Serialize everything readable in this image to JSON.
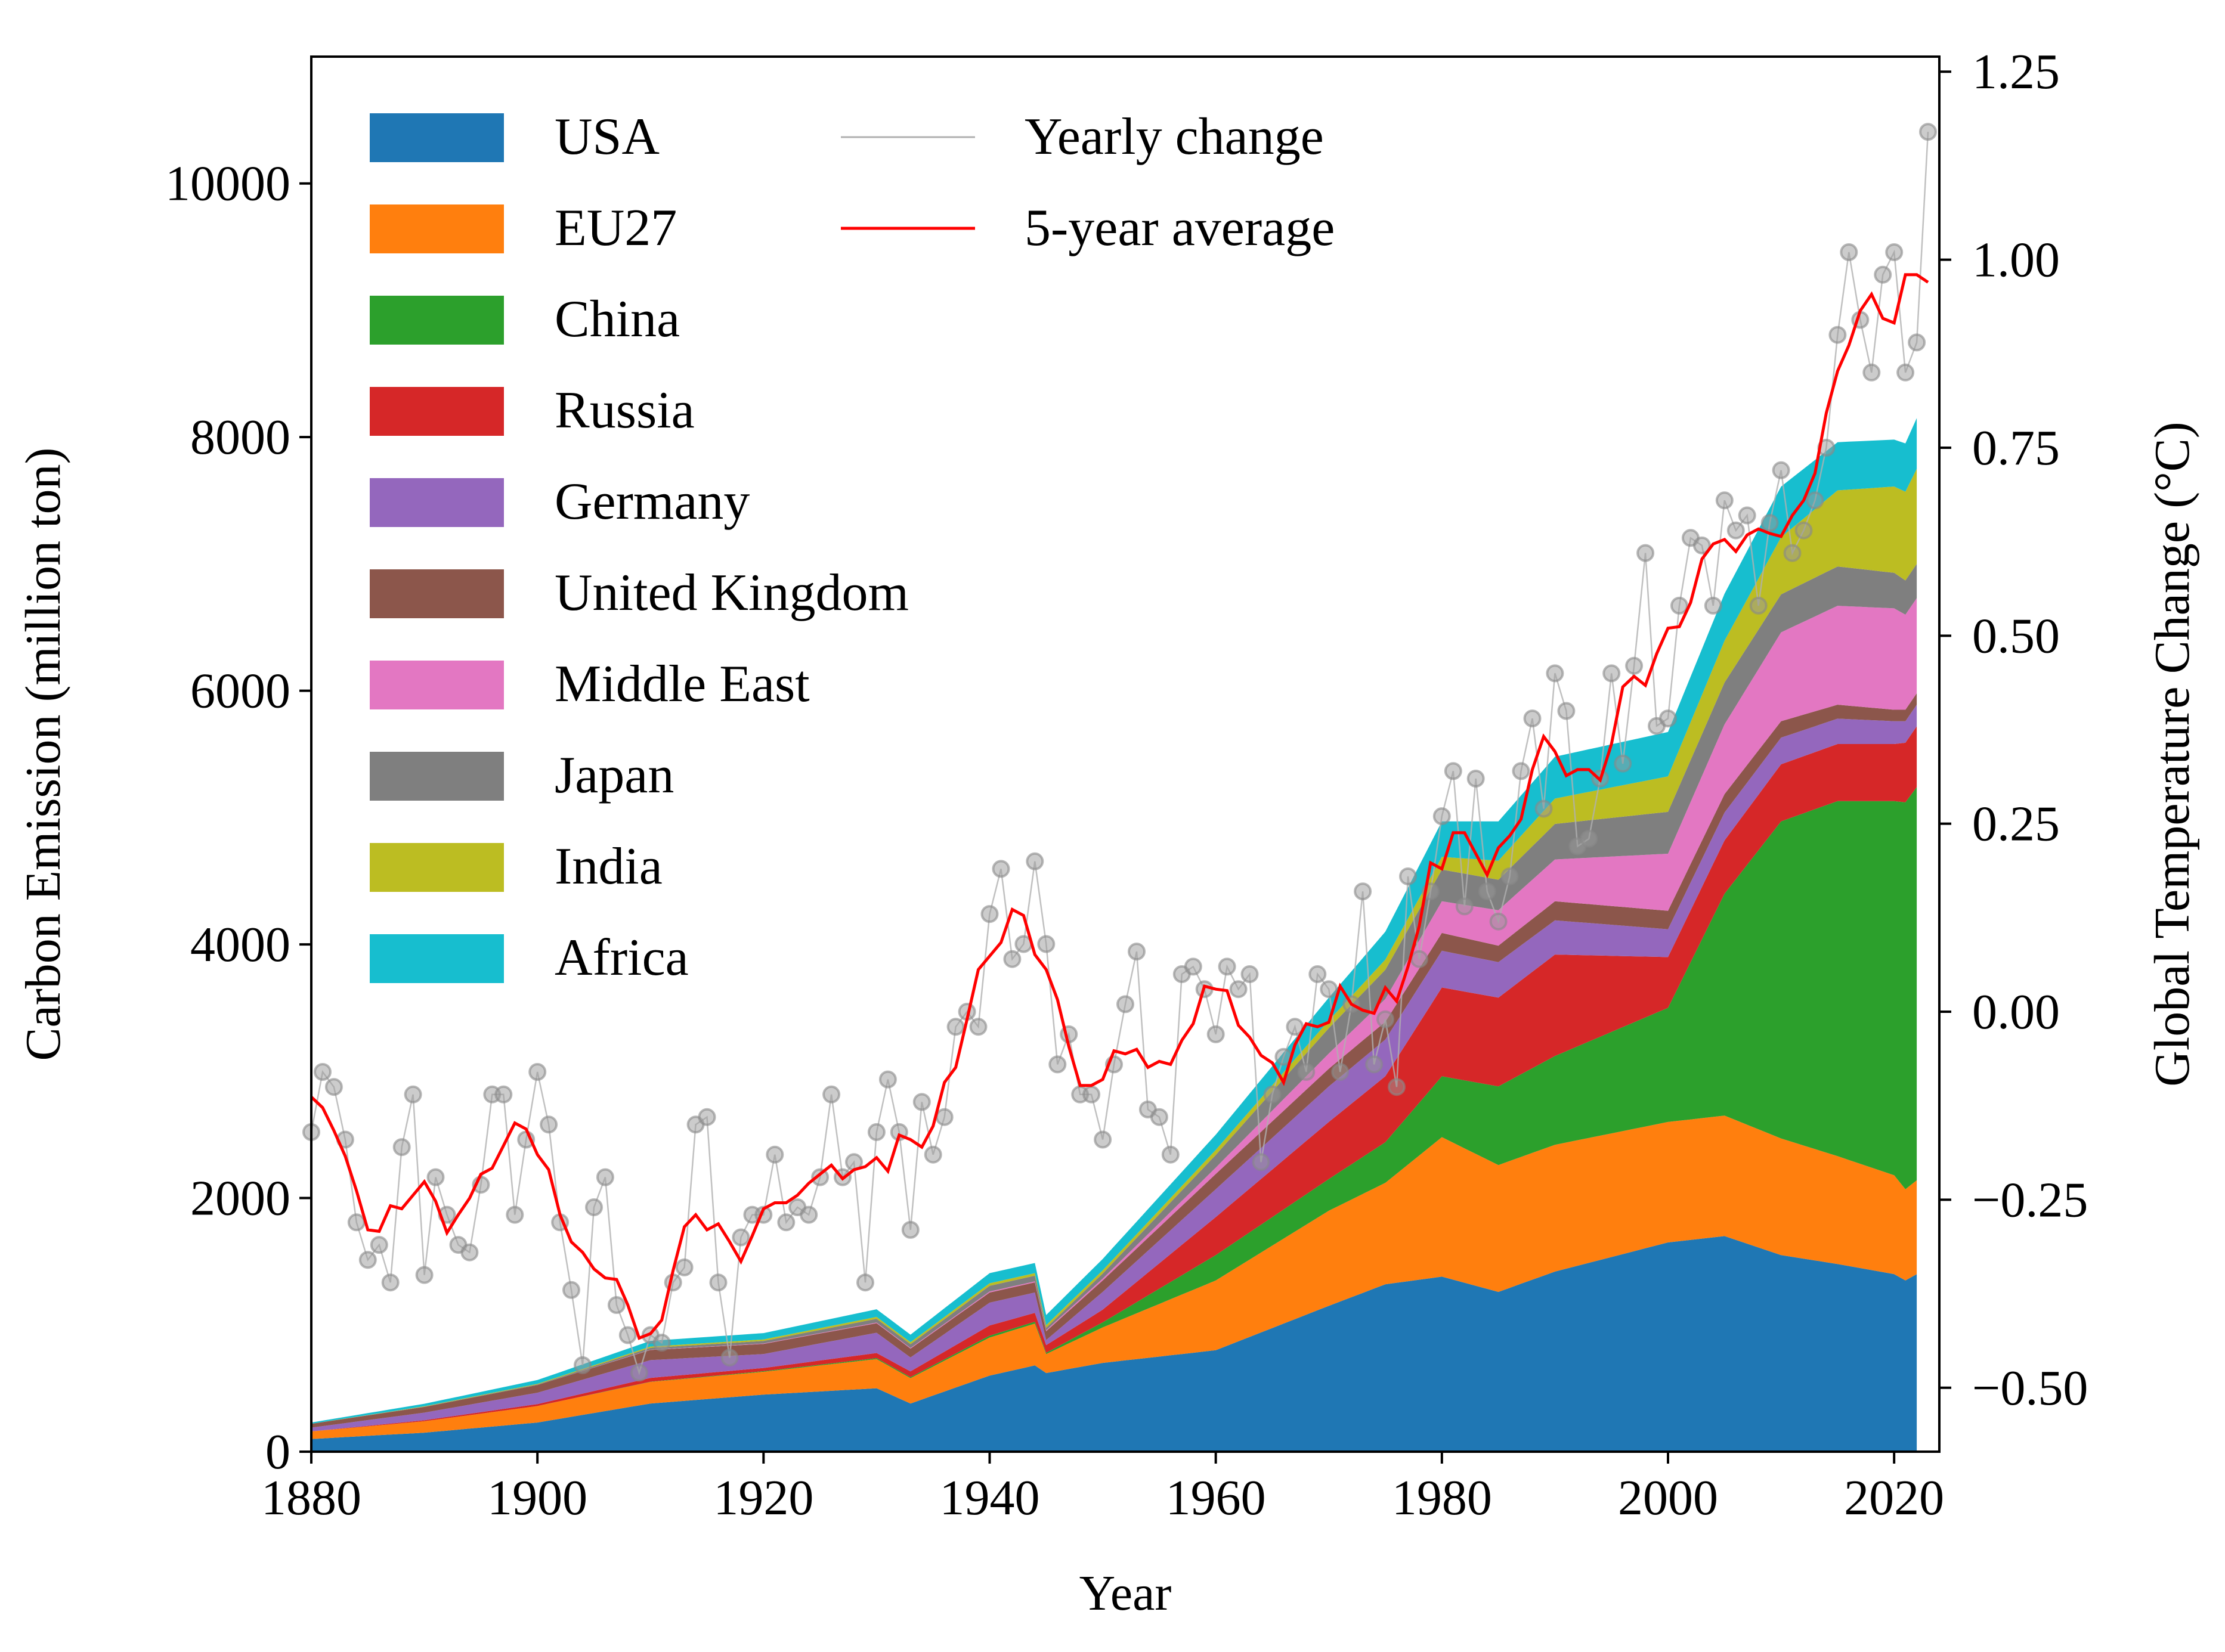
{
  "chart_data": {
    "type": "area",
    "xlabel": "Year",
    "ylabel": "Carbon Emission (million ton)",
    "y2label": "Global Temperature Change (°C)",
    "xlim": [
      1880,
      2024
    ],
    "ylim": [
      0,
      11000
    ],
    "y2lim": [
      -0.585,
      1.27
    ],
    "x_ticks": [
      1880,
      1900,
      1920,
      1940,
      1960,
      1980,
      2000,
      2020
    ],
    "y_ticks": [
      0,
      2000,
      4000,
      6000,
      8000,
      10000
    ],
    "y2_ticks": [
      -0.5,
      -0.25,
      0.0,
      0.25,
      0.5,
      0.75,
      1.0,
      1.25
    ],
    "y2_tick_labels": [
      "−0.50",
      "−0.25",
      "0.00",
      "0.25",
      "0.50",
      "0.75",
      "1.00",
      "1.25"
    ],
    "grid": false,
    "legend_placement": "top-left",
    "area_anchor_years": [
      1880,
      1890,
      1900,
      1910,
      1920,
      1930,
      1933,
      1940,
      1944,
      1945,
      1950,
      1960,
      1970,
      1975,
      1980,
      1985,
      1990,
      2000,
      2005,
      2010,
      2015,
      2020,
      2021,
      2022
    ],
    "series": [
      {
        "name": "USA",
        "color": "#1f77b4",
        "values": [
          100,
          150,
          230,
          380,
          450,
          500,
          380,
          600,
          680,
          620,
          700,
          800,
          1150,
          1320,
          1380,
          1260,
          1420,
          1650,
          1700,
          1550,
          1480,
          1400,
          1350,
          1400
        ]
      },
      {
        "name": "EU27",
        "color": "#ff7f0e",
        "values": [
          60,
          90,
          130,
          170,
          180,
          230,
          200,
          300,
          330,
          150,
          280,
          550,
          750,
          800,
          1100,
          1000,
          1000,
          950,
          950,
          920,
          850,
          780,
          720,
          740
        ]
      },
      {
        "name": "China",
        "color": "#2ca02c",
        "values": [
          0,
          0,
          0,
          2,
          5,
          8,
          8,
          15,
          15,
          10,
          40,
          200,
          250,
          320,
          480,
          620,
          700,
          900,
          1750,
          2500,
          2800,
          2950,
          3050,
          3100
        ]
      },
      {
        "name": "Russia",
        "color": "#d62728",
        "values": [
          0,
          8,
          15,
          30,
          25,
          40,
          45,
          80,
          70,
          60,
          100,
          300,
          450,
          520,
          700,
          700,
          800,
          400,
          420,
          450,
          450,
          450,
          470,
          480
        ]
      },
      {
        "name": "Germany",
        "color": "#9467bd",
        "values": [
          30,
          60,
          90,
          140,
          110,
          160,
          110,
          180,
          160,
          40,
          140,
          220,
          280,
          290,
          290,
          280,
          270,
          220,
          220,
          210,
          200,
          180,
          170,
          170
        ]
      },
      {
        "name": "United Kingdom",
        "color": "#8c564b",
        "values": [
          30,
          45,
          60,
          80,
          80,
          75,
          70,
          80,
          80,
          70,
          90,
          120,
          140,
          140,
          140,
          130,
          150,
          145,
          145,
          130,
          110,
          90,
          90,
          90
        ]
      },
      {
        "name": "Middle East",
        "color": "#e377c2",
        "values": [
          0,
          0,
          0,
          2,
          3,
          5,
          5,
          8,
          8,
          8,
          15,
          50,
          120,
          180,
          250,
          280,
          330,
          450,
          550,
          700,
          780,
          800,
          750,
          750
        ]
      },
      {
        "name": "Japan",
        "color": "#7f7f7f",
        "values": [
          0,
          2,
          5,
          15,
          20,
          30,
          30,
          45,
          45,
          20,
          40,
          100,
          200,
          230,
          250,
          240,
          280,
          330,
          330,
          300,
          310,
          280,
          270,
          270
        ]
      },
      {
        "name": "India",
        "color": "#bcbd22",
        "values": [
          0,
          3,
          5,
          10,
          12,
          15,
          15,
          20,
          20,
          20,
          25,
          40,
          60,
          80,
          100,
          150,
          200,
          280,
          330,
          450,
          600,
          680,
          700,
          750
        ]
      },
      {
        "name": "Africa",
        "color": "#17becf",
        "values": [
          10,
          20,
          30,
          45,
          50,
          60,
          60,
          80,
          80,
          80,
          90,
          120,
          180,
          220,
          280,
          310,
          330,
          350,
          370,
          400,
          380,
          370,
          380,
          400
        ]
      }
    ],
    "temperature": {
      "yearly_name": "Yearly change",
      "average_name": "5-year average",
      "yearly_color": "#b0b0b0",
      "average_color": "#ff0000",
      "years": [
        1880,
        1881,
        1882,
        1883,
        1884,
        1885,
        1886,
        1887,
        1888,
        1889,
        1890,
        1891,
        1892,
        1893,
        1894,
        1895,
        1896,
        1897,
        1898,
        1899,
        1900,
        1901,
        1902,
        1903,
        1904,
        1905,
        1906,
        1907,
        1908,
        1909,
        1910,
        1911,
        1912,
        1913,
        1914,
        1915,
        1916,
        1917,
        1918,
        1919,
        1920,
        1921,
        1922,
        1923,
        1924,
        1925,
        1926,
        1927,
        1928,
        1929,
        1930,
        1931,
        1932,
        1933,
        1934,
        1935,
        1936,
        1937,
        1938,
        1939,
        1940,
        1941,
        1942,
        1943,
        1944,
        1945,
        1946,
        1947,
        1948,
        1949,
        1950,
        1951,
        1952,
        1953,
        1954,
        1955,
        1956,
        1957,
        1958,
        1959,
        1960,
        1961,
        1962,
        1963,
        1964,
        1965,
        1966,
        1967,
        1968,
        1969,
        1970,
        1971,
        1972,
        1973,
        1974,
        1975,
        1976,
        1977,
        1978,
        1979,
        1980,
        1981,
        1982,
        1983,
        1984,
        1985,
        1986,
        1987,
        1988,
        1989,
        1990,
        1991,
        1992,
        1993,
        1994,
        1995,
        1996,
        1997,
        1998,
        1999,
        2000,
        2001,
        2002,
        2003,
        2004,
        2005,
        2006,
        2007,
        2008,
        2009,
        2010,
        2011,
        2012,
        2013,
        2014,
        2015,
        2016,
        2017,
        2018,
        2019,
        2020,
        2021,
        2022,
        2023
      ],
      "yearly": [
        -0.16,
        -0.08,
        -0.1,
        -0.17,
        -0.28,
        -0.33,
        -0.31,
        -0.36,
        -0.18,
        -0.11,
        -0.35,
        -0.22,
        -0.27,
        -0.31,
        -0.32,
        -0.23,
        -0.11,
        -0.11,
        -0.27,
        -0.17,
        -0.08,
        -0.15,
        -0.28,
        -0.37,
        -0.47,
        -0.26,
        -0.22,
        -0.39,
        -0.43,
        -0.48,
        -0.43,
        -0.44,
        -0.36,
        -0.34,
        -0.15,
        -0.14,
        -0.36,
        -0.46,
        -0.3,
        -0.27,
        -0.27,
        -0.19,
        -0.28,
        -0.26,
        -0.27,
        -0.22,
        -0.11,
        -0.22,
        -0.2,
        -0.36,
        -0.16,
        -0.09,
        -0.16,
        -0.29,
        -0.12,
        -0.19,
        -0.14,
        -0.02,
        0.0,
        -0.02,
        0.13,
        0.19,
        0.07,
        0.09,
        0.2,
        0.09,
        -0.07,
        -0.03,
        -0.11,
        -0.11,
        -0.17,
        -0.07,
        0.01,
        0.08,
        -0.13,
        -0.14,
        -0.19,
        0.05,
        0.06,
        0.03,
        -0.03,
        0.06,
        0.03,
        0.05,
        -0.2,
        -0.11,
        -0.06,
        -0.02,
        -0.08,
        0.05,
        0.03,
        -0.08,
        0.01,
        0.16,
        -0.07,
        -0.01,
        -0.1,
        0.18,
        0.07,
        0.16,
        0.26,
        0.32,
        0.14,
        0.31,
        0.16,
        0.12,
        0.18,
        0.32,
        0.39,
        0.27,
        0.45,
        0.4,
        0.22,
        0.23,
        0.31,
        0.45,
        0.33,
        0.46,
        0.61,
        0.38,
        0.39,
        0.54,
        0.63,
        0.62,
        0.54,
        0.68,
        0.64,
        0.66,
        0.54,
        0.65,
        0.72,
        0.61,
        0.64,
        0.68,
        0.75,
        0.9,
        1.01,
        0.92,
        0.85,
        0.98,
        1.01,
        0.85,
        0.89,
        1.17
      ]
    }
  }
}
